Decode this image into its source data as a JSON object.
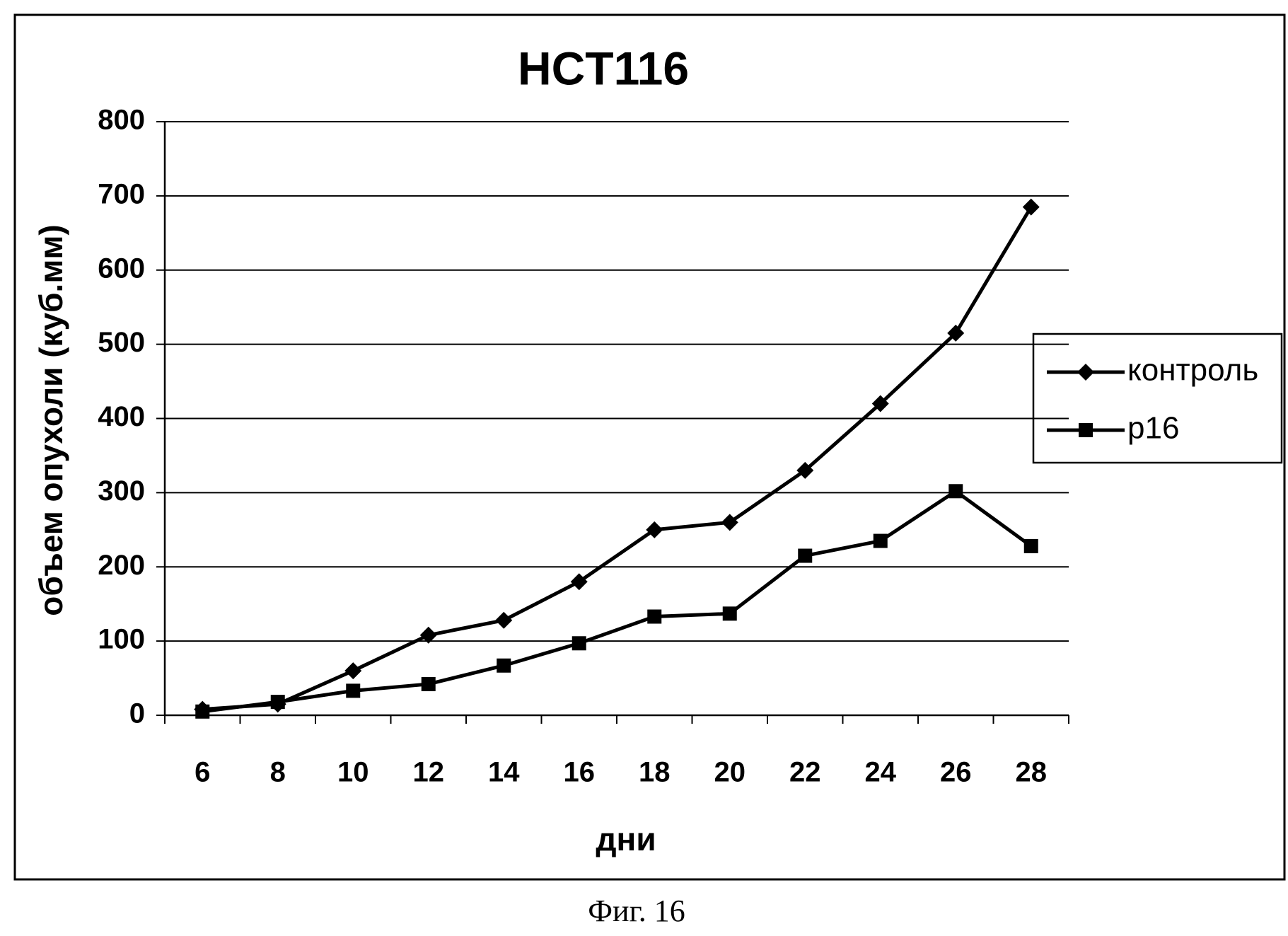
{
  "chart_data": {
    "type": "line",
    "title": "HCT116",
    "x_label": "дни",
    "y_label": "объем опухоли (куб.мм)",
    "caption": "Фиг. 16",
    "categories": [
      "6",
      "8",
      "10",
      "12",
      "14",
      "16",
      "18",
      "20",
      "22",
      "24",
      "26",
      "28"
    ],
    "series": [
      {
        "name": "контроль",
        "color": "#000000",
        "marker": "diamond",
        "values": [
          8,
          15,
          60,
          108,
          128,
          180,
          250,
          260,
          330,
          420,
          515,
          685
        ]
      },
      {
        "name": "p16",
        "color": "#000000",
        "marker": "square",
        "values": [
          5,
          18,
          33,
          42,
          67,
          97,
          133,
          137,
          215,
          235,
          302,
          228
        ]
      }
    ],
    "ylim": [
      0,
      800
    ],
    "yticks": [
      0,
      100,
      200,
      300,
      400,
      500,
      600,
      700,
      800
    ],
    "grid": true,
    "legend": "right"
  }
}
